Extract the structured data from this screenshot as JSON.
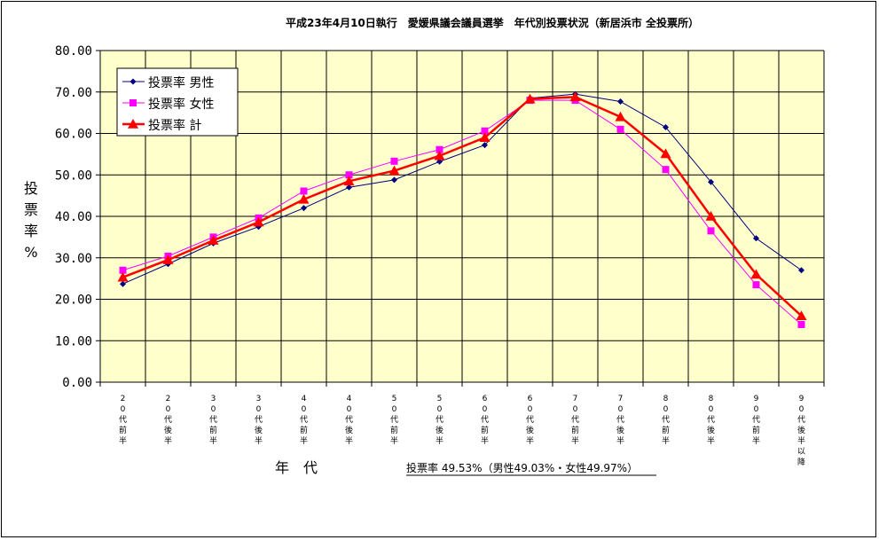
{
  "chart_data": {
    "type": "line",
    "title": "平成23年4月10日執行　愛媛県議会議員選挙　年代別投票状況（新居浜市 全投票所）",
    "ylabel": "投票率%",
    "xlabel": "年　代",
    "ylim": [
      0,
      80
    ],
    "yticks": [
      "0.00",
      "10.00",
      "20.00",
      "30.00",
      "40.00",
      "50.00",
      "60.00",
      "70.00",
      "80.00"
    ],
    "grid": true,
    "legend_position": "top-left",
    "background_color": "#FFFFCC",
    "categories": [
      "20代前半",
      "20代後半",
      "30代前半",
      "30代後半",
      "40代前半",
      "40代後半",
      "50代前半",
      "50代後半",
      "60代前半",
      "60代後半",
      "70代前半",
      "70代後半",
      "80代前半",
      "80代後半",
      "90代前半",
      "90代後半以降"
    ],
    "series": [
      {
        "name": "投票率 男性",
        "color": "#000080",
        "marker": "diamond",
        "values": [
          23.7,
          28.5,
          33.5,
          37.5,
          42.0,
          47.0,
          48.8,
          53.2,
          57.2,
          68.5,
          69.5,
          67.7,
          61.5,
          48.3,
          34.7,
          27.0
        ]
      },
      {
        "name": "投票率 女性",
        "color": "#FF00FF",
        "marker": "square",
        "values": [
          27.0,
          30.4,
          35.0,
          39.6,
          46.1,
          50.0,
          53.3,
          56.1,
          60.6,
          68.0,
          68.0,
          61.0,
          51.3,
          36.5,
          23.5,
          13.9
        ]
      },
      {
        "name": "投票率 計",
        "color": "#FF0000",
        "marker": "triangle",
        "values": [
          25.3,
          29.5,
          34.2,
          38.6,
          44.1,
          48.5,
          51.0,
          54.6,
          59.0,
          68.3,
          68.8,
          64.0,
          55.1,
          40.0,
          26.0,
          16.0
        ]
      }
    ],
    "annotation": "投票率 49.53%（男性49.03%・女性49.97%）"
  }
}
